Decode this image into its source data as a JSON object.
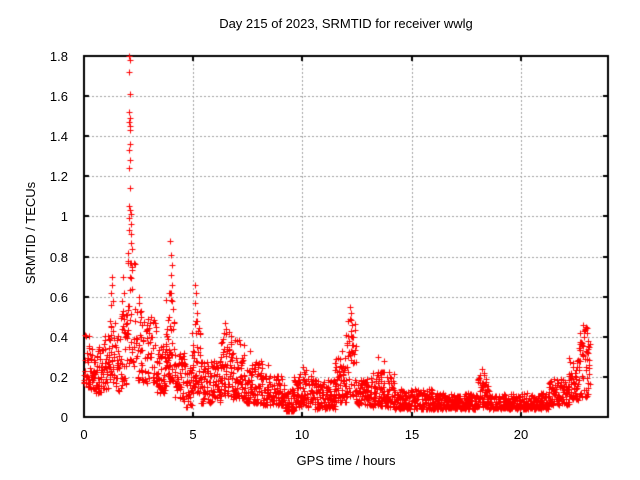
{
  "window": {
    "background_color": "#ffffff",
    "text_color": "#000000"
  },
  "chart_data": {
    "type": "scatter",
    "title": "Day 215 of 2023, SRMTID for receiver wwlg",
    "xlabel": "GPS time / hours",
    "ylabel": "SRMTID / TECUs",
    "xlim": [
      0,
      24
    ],
    "ylim": [
      0,
      1.8
    ],
    "xticks": [
      0,
      5,
      10,
      15,
      20
    ],
    "xtick_labels": [
      "0",
      "5",
      "10",
      "15",
      "20"
    ],
    "yticks": [
      0,
      0.2,
      0.4,
      0.6,
      0.8,
      1,
      1.2,
      1.4,
      1.6,
      1.8
    ],
    "ytick_labels": [
      "0",
      "0.2",
      "0.4",
      "0.6",
      "0.8",
      "1",
      "1.2",
      "1.4",
      "1.6",
      "1.8"
    ],
    "grid": true,
    "grid_style": "dashed",
    "legend_position": "none",
    "marker": "plus",
    "marker_size_px": 7,
    "marker_color": "#ff0000",
    "grid_color": "#a0a0a0",
    "axis_color": "#000000",
    "series": [
      {
        "name": "SRMTID",
        "sampling": {
          "t_start": 0,
          "t_end": 23.17,
          "interval_hours": 0.02,
          "max_points_per_epoch": 3,
          "seed": 1234567,
          "bias_exponent": 1.45,
          "x_jitter_hours": 0.008
        },
        "envelope_segments": [
          [
            0.0,
            0.3,
            0.15,
            0.44
          ],
          [
            0.3,
            0.9,
            0.12,
            0.35
          ],
          [
            0.9,
            1.15,
            0.14,
            0.42
          ],
          [
            1.15,
            1.45,
            0.16,
            0.6
          ],
          [
            1.45,
            1.7,
            0.13,
            0.42
          ],
          [
            1.7,
            1.95,
            0.16,
            0.55
          ],
          [
            1.95,
            2.4,
            0.25,
            0.78
          ],
          [
            2.4,
            2.65,
            0.18,
            0.55
          ],
          [
            2.65,
            3.3,
            0.17,
            0.5
          ],
          [
            3.3,
            3.75,
            0.12,
            0.38
          ],
          [
            3.75,
            4.15,
            0.18,
            0.62
          ],
          [
            4.15,
            4.6,
            0.09,
            0.32
          ],
          [
            4.6,
            4.95,
            0.05,
            0.28
          ],
          [
            4.95,
            5.35,
            0.12,
            0.52
          ],
          [
            5.35,
            6.25,
            0.07,
            0.28
          ],
          [
            6.25,
            6.75,
            0.11,
            0.45
          ],
          [
            6.75,
            7.35,
            0.09,
            0.4
          ],
          [
            7.35,
            8.2,
            0.07,
            0.28
          ],
          [
            8.2,
            9.2,
            0.06,
            0.21
          ],
          [
            9.2,
            9.6,
            0.03,
            0.14
          ],
          [
            9.6,
            10.5,
            0.05,
            0.24
          ],
          [
            10.5,
            11.5,
            0.04,
            0.19
          ],
          [
            11.5,
            12.0,
            0.07,
            0.3
          ],
          [
            12.0,
            12.45,
            0.1,
            0.5
          ],
          [
            12.45,
            13.1,
            0.06,
            0.19
          ],
          [
            13.1,
            14.2,
            0.05,
            0.23
          ],
          [
            14.2,
            16.0,
            0.04,
            0.14
          ],
          [
            16.0,
            18.0,
            0.04,
            0.12
          ],
          [
            18.0,
            18.55,
            0.05,
            0.22
          ],
          [
            18.55,
            21.3,
            0.04,
            0.12
          ],
          [
            21.3,
            22.2,
            0.06,
            0.19
          ],
          [
            22.2,
            22.7,
            0.08,
            0.3
          ],
          [
            22.7,
            23.17,
            0.1,
            0.46
          ]
        ],
        "peak_points": [
          [
            2.05,
            1.8
          ],
          [
            2.09,
            1.78
          ],
          [
            2.07,
            1.72
          ],
          [
            2.11,
            1.61
          ],
          [
            2.06,
            1.52
          ],
          [
            2.1,
            1.49
          ],
          [
            2.08,
            1.47
          ],
          [
            2.12,
            1.45
          ],
          [
            2.09,
            1.43
          ],
          [
            2.12,
            1.36
          ],
          [
            2.07,
            1.33
          ],
          [
            2.1,
            1.28
          ],
          [
            2.08,
            1.24
          ],
          [
            2.11,
            1.14
          ],
          [
            2.06,
            1.05
          ],
          [
            2.09,
            1.03
          ],
          [
            2.13,
            1.01
          ],
          [
            2.07,
            0.99
          ],
          [
            2.15,
            0.96
          ],
          [
            2.04,
            0.93
          ],
          [
            2.17,
            0.91
          ],
          [
            2.13,
            0.87
          ],
          [
            2.19,
            0.84
          ],
          [
            2.02,
            0.82
          ],
          [
            1.27,
            0.7
          ],
          [
            1.3,
            0.66
          ],
          [
            1.25,
            0.62
          ],
          [
            1.32,
            0.58
          ],
          [
            1.79,
            0.7
          ],
          [
            1.83,
            0.62
          ],
          [
            1.76,
            0.58
          ],
          [
            2.5,
            0.6
          ],
          [
            2.53,
            0.57
          ],
          [
            3.95,
            0.88
          ],
          [
            3.99,
            0.81
          ],
          [
            4.03,
            0.76
          ],
          [
            3.97,
            0.71
          ],
          [
            4.05,
            0.66
          ],
          [
            3.92,
            0.62
          ],
          [
            4.01,
            0.58
          ],
          [
            4.08,
            0.54
          ],
          [
            3.9,
            0.5
          ],
          [
            5.1,
            0.66
          ],
          [
            5.14,
            0.62
          ],
          [
            5.08,
            0.57
          ],
          [
            5.17,
            0.52
          ],
          [
            5.12,
            0.48
          ],
          [
            6.45,
            0.47
          ],
          [
            6.52,
            0.44
          ],
          [
            6.4,
            0.42
          ],
          [
            7.0,
            0.38
          ],
          [
            7.6,
            0.33
          ],
          [
            8.45,
            0.26
          ],
          [
            10.05,
            0.25
          ],
          [
            11.8,
            0.33
          ],
          [
            12.2,
            0.55
          ],
          [
            12.24,
            0.52
          ],
          [
            12.18,
            0.49
          ],
          [
            12.27,
            0.46
          ],
          [
            12.22,
            0.43
          ],
          [
            12.3,
            0.4
          ],
          [
            12.16,
            0.38
          ],
          [
            12.26,
            0.36
          ],
          [
            12.21,
            0.33
          ],
          [
            13.45,
            0.3
          ],
          [
            13.75,
            0.28
          ],
          [
            18.25,
            0.24
          ],
          [
            18.3,
            0.21
          ],
          [
            22.86,
            0.46
          ],
          [
            22.95,
            0.44
          ],
          [
            23.02,
            0.42
          ],
          [
            22.9,
            0.4
          ],
          [
            23.08,
            0.38
          ],
          [
            22.8,
            0.37
          ],
          [
            23.12,
            0.35
          ],
          [
            22.98,
            0.33
          ]
        ]
      }
    ]
  }
}
